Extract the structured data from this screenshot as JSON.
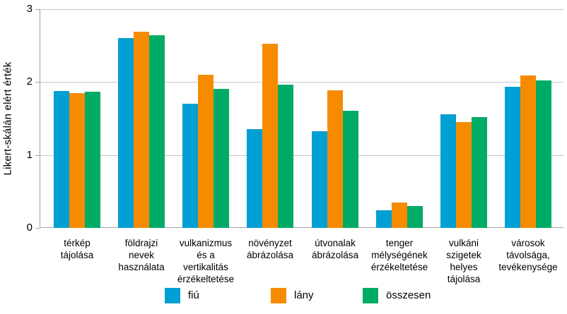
{
  "chart_data": {
    "type": "bar",
    "title": "",
    "ylabel": "Likert-skálán elért érték",
    "xlabel": "",
    "ylim": [
      0,
      3
    ],
    "yticks": [
      0,
      1,
      2,
      3
    ],
    "grid": true,
    "legend_position": "bottom",
    "categories": [
      "térkép\ntájolása",
      "földrajzi\nnevek\nhasználata",
      "vulkanizmus\nés a\nvertikalitás\nérzékeltetése",
      "növényzet\nábrázolása",
      "útvonalak\nábrázolása",
      "tenger\nmélységének\nérzékeltetése",
      "vulkáni\nszigetek\nhelyes\ntájolása",
      "városok\ntávolsága,\ntevékenysége"
    ],
    "series": [
      {
        "name": "fiú",
        "color": "#009FD4",
        "values": [
          1.88,
          2.6,
          1.7,
          1.35,
          1.33,
          0.24,
          1.56,
          1.94
        ]
      },
      {
        "name": "lány",
        "color": "#F78B00",
        "values": [
          1.85,
          2.69,
          2.1,
          2.53,
          1.89,
          0.35,
          1.45,
          2.09
        ]
      },
      {
        "name": "összesen",
        "color": "#00AB66",
        "values": [
          1.87,
          2.64,
          1.91,
          1.96,
          1.61,
          0.3,
          1.52,
          2.02
        ]
      }
    ]
  },
  "colors": {
    "background": "#FFFFFF",
    "gridline": "#C6C6C6",
    "axis": "#A3A3A3",
    "text": "#000000"
  }
}
